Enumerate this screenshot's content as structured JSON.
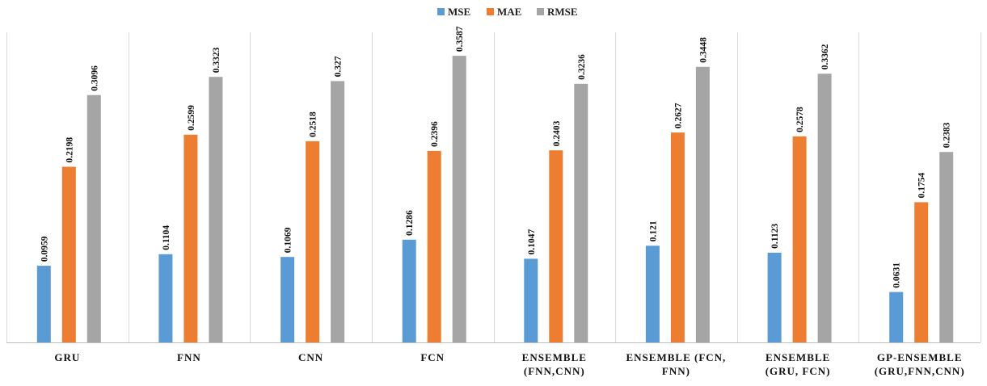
{
  "chart_data": {
    "type": "bar",
    "title": "",
    "xlabel": "",
    "ylabel": "",
    "ylim": [
      0,
      0.38
    ],
    "grid": false,
    "legend_position": "top-center",
    "categories": [
      [
        "GRU"
      ],
      [
        "FNN"
      ],
      [
        "CNN"
      ],
      [
        "FCN"
      ],
      [
        "ENSEMBLE",
        "(FNN,CNN)"
      ],
      [
        "ENSEMBLE (FCN,",
        "FNN)"
      ],
      [
        "ENSEMBLE",
        "(GRU, FCN)"
      ],
      [
        "GP-ENSEMBLE",
        "(GRU,FNN,CNN)"
      ]
    ],
    "series": [
      {
        "name": "MSE",
        "color": "#5b9bd5",
        "values": [
          0.0959,
          0.1104,
          0.1069,
          0.1286,
          0.1047,
          0.121,
          0.1123,
          0.0631
        ],
        "labels": [
          "0.0959",
          "0.1104",
          "0.1069",
          "0.1286",
          "0.1047",
          "0.121",
          "0.1123",
          "0.0631"
        ]
      },
      {
        "name": "MAE",
        "color": "#ed7d31",
        "values": [
          0.2198,
          0.2599,
          0.2518,
          0.2396,
          0.2403,
          0.2627,
          0.2578,
          0.1754
        ],
        "labels": [
          "0.2198",
          "0.2599",
          "0.2518",
          "0.2396",
          "0.2403",
          "0.2627",
          "0.2578",
          "0.1754"
        ]
      },
      {
        "name": "RMSE",
        "color": "#a5a5a5",
        "values": [
          0.3096,
          0.3323,
          0.327,
          0.3587,
          0.3236,
          0.3448,
          0.3362,
          0.2383
        ],
        "labels": [
          "0.3096",
          "0.3323",
          "0.327",
          "0.3587",
          "0.3236",
          "0.3448",
          "0.3362",
          "0.2383"
        ]
      }
    ],
    "divider_color": "#d9d9d9",
    "axis_color": "#bfbfbf"
  }
}
